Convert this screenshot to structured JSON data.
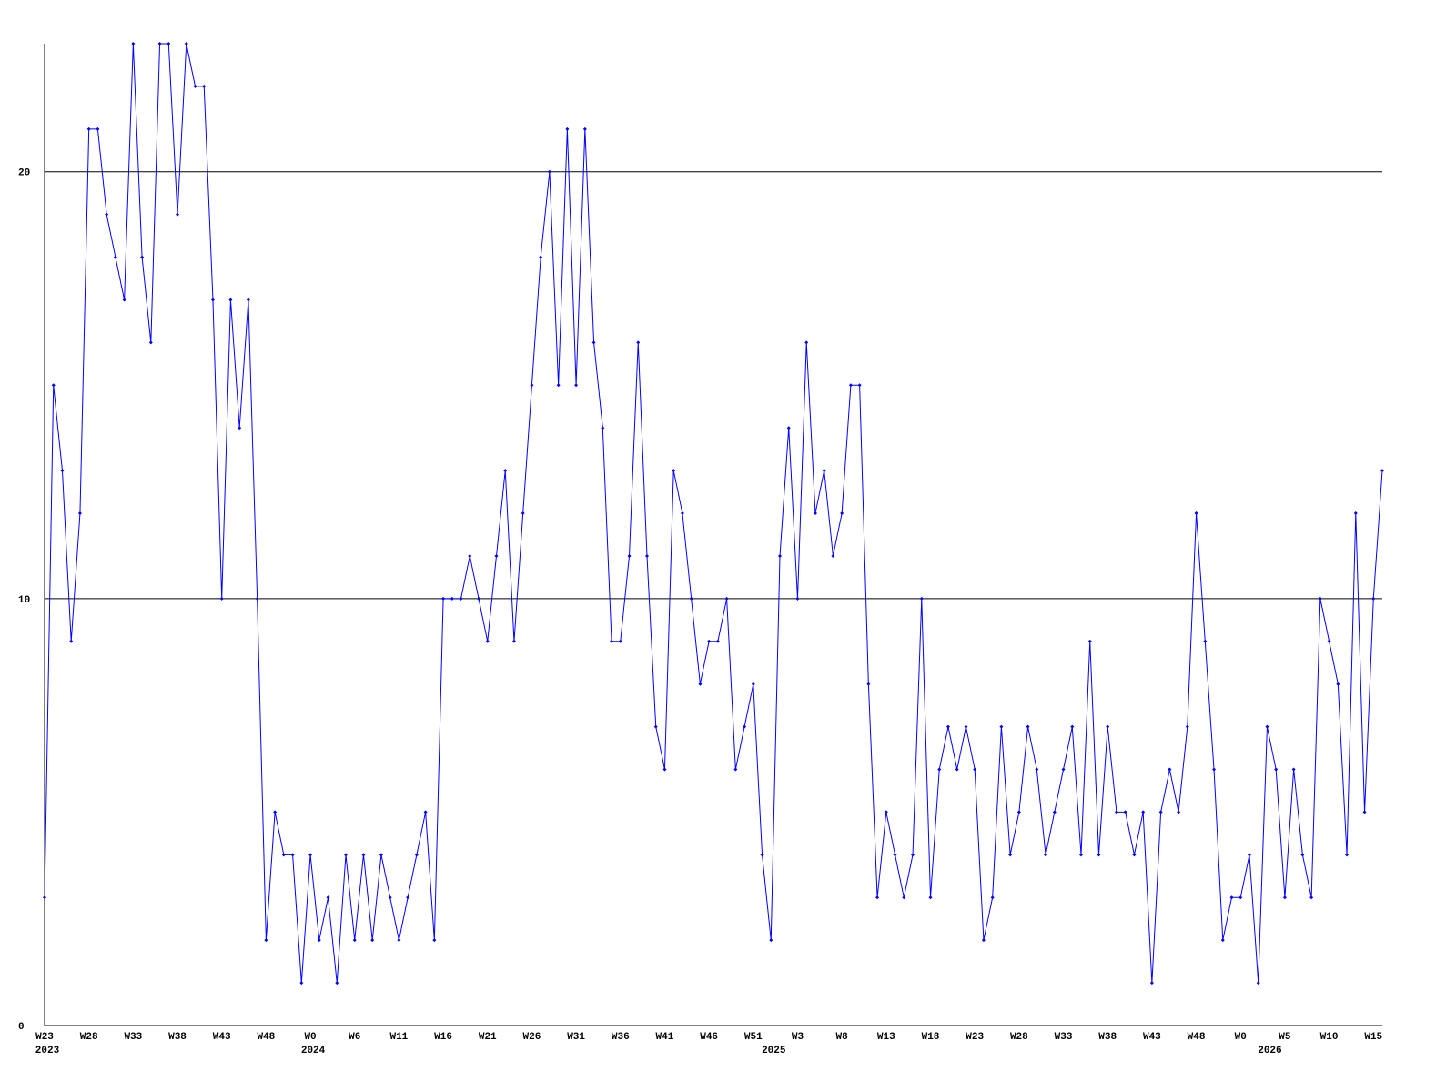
{
  "chart_data": {
    "type": "line",
    "color": "#0000ff",
    "grid": true,
    "ylim": [
      0,
      23
    ],
    "yticks": [
      0,
      10,
      20
    ],
    "categories": [
      "W23",
      null,
      null,
      null,
      null,
      "W28",
      null,
      null,
      null,
      null,
      "W33",
      null,
      null,
      null,
      null,
      "W38",
      null,
      null,
      null,
      null,
      "W43",
      null,
      null,
      null,
      null,
      "W48",
      null,
      null,
      null,
      null,
      "W0",
      null,
      null,
      null,
      null,
      "W6",
      null,
      null,
      null,
      null,
      "W11",
      null,
      null,
      null,
      null,
      "W16",
      null,
      null,
      null,
      null,
      "W21",
      null,
      null,
      null,
      null,
      "W26",
      null,
      null,
      null,
      null,
      "W31",
      null,
      null,
      null,
      null,
      "W36",
      null,
      null,
      null,
      null,
      "W41",
      null,
      null,
      null,
      null,
      "W46",
      null,
      null,
      null,
      null,
      "W51",
      null,
      null,
      null,
      null,
      "W3",
      null,
      null,
      null,
      null,
      "W8",
      null,
      null,
      null,
      null,
      "W13",
      null,
      null,
      null,
      null,
      "W18",
      null,
      null,
      null,
      null,
      "W23",
      null,
      null,
      null,
      null,
      "W28",
      null,
      null,
      null,
      null,
      "W33",
      null,
      null,
      null,
      null,
      "W38",
      null,
      null,
      null,
      null,
      "W43",
      null,
      null,
      null,
      null,
      "W48",
      null,
      null,
      null,
      null,
      "W0",
      null,
      null,
      null,
      null,
      "W5",
      null,
      null,
      null,
      null,
      "W10",
      null,
      null,
      null,
      null,
      "W15",
      null
    ],
    "years": [
      "2023",
      null,
      null,
      null,
      null,
      null,
      null,
      null,
      null,
      null,
      null,
      null,
      null,
      null,
      null,
      null,
      null,
      null,
      null,
      null,
      null,
      null,
      null,
      null,
      null,
      null,
      null,
      null,
      null,
      null,
      "2024",
      null,
      null,
      null,
      null,
      null,
      null,
      null,
      null,
      null,
      null,
      null,
      null,
      null,
      null,
      null,
      null,
      null,
      null,
      null,
      null,
      null,
      null,
      null,
      null,
      null,
      null,
      null,
      null,
      null,
      null,
      null,
      null,
      null,
      null,
      null,
      null,
      null,
      null,
      null,
      null,
      null,
      null,
      null,
      null,
      null,
      null,
      null,
      null,
      null,
      null,
      null,
      "2025",
      null,
      null,
      null,
      null,
      null,
      null,
      null,
      null,
      null,
      null,
      null,
      null,
      null,
      null,
      null,
      null,
      null,
      null,
      null,
      null,
      null,
      null,
      null,
      null,
      null,
      null,
      null,
      null,
      null,
      null,
      null,
      null,
      null,
      null,
      null,
      null,
      null,
      null,
      null,
      null,
      null,
      null,
      null,
      null,
      null,
      null,
      null,
      null,
      null,
      null,
      null,
      null,
      null,
      null,
      null,
      "2026",
      null,
      null,
      null,
      null,
      null,
      null,
      null,
      null,
      null,
      null,
      null,
      null,
      null,
      null,
      null
    ],
    "values": [
      3,
      15,
      13,
      9,
      12,
      21,
      21,
      19,
      18,
      17,
      23,
      18,
      16,
      23,
      23,
      19,
      23,
      22,
      22,
      17,
      10,
      17,
      14,
      17,
      10,
      2,
      5,
      4,
      4,
      1,
      4,
      2,
      3,
      1,
      4,
      2,
      4,
      2,
      4,
      3,
      2,
      3,
      4,
      5,
      2,
      10,
      10,
      10,
      11,
      10,
      9,
      11,
      13,
      9,
      12,
      15,
      18,
      20,
      15,
      21,
      15,
      21,
      16,
      14,
      9,
      9,
      11,
      16,
      11,
      7,
      6,
      13,
      12,
      10,
      8,
      9,
      9,
      10,
      6,
      7,
      8,
      4,
      2,
      11,
      14,
      10,
      16,
      12,
      13,
      11,
      12,
      15,
      15,
      8,
      3,
      5,
      4,
      3,
      4,
      10,
      3,
      6,
      7,
      6,
      7,
      6,
      2,
      3,
      7,
      4,
      5,
      7,
      6,
      4,
      5,
      6,
      7,
      4,
      9,
      4,
      7,
      5,
      5,
      4,
      5,
      1,
      5,
      6,
      5,
      7,
      12,
      9,
      6,
      2,
      3,
      3,
      4,
      1,
      7,
      6,
      3,
      6,
      4,
      3,
      10,
      9,
      8,
      4,
      12,
      5,
      10,
      13
    ]
  }
}
